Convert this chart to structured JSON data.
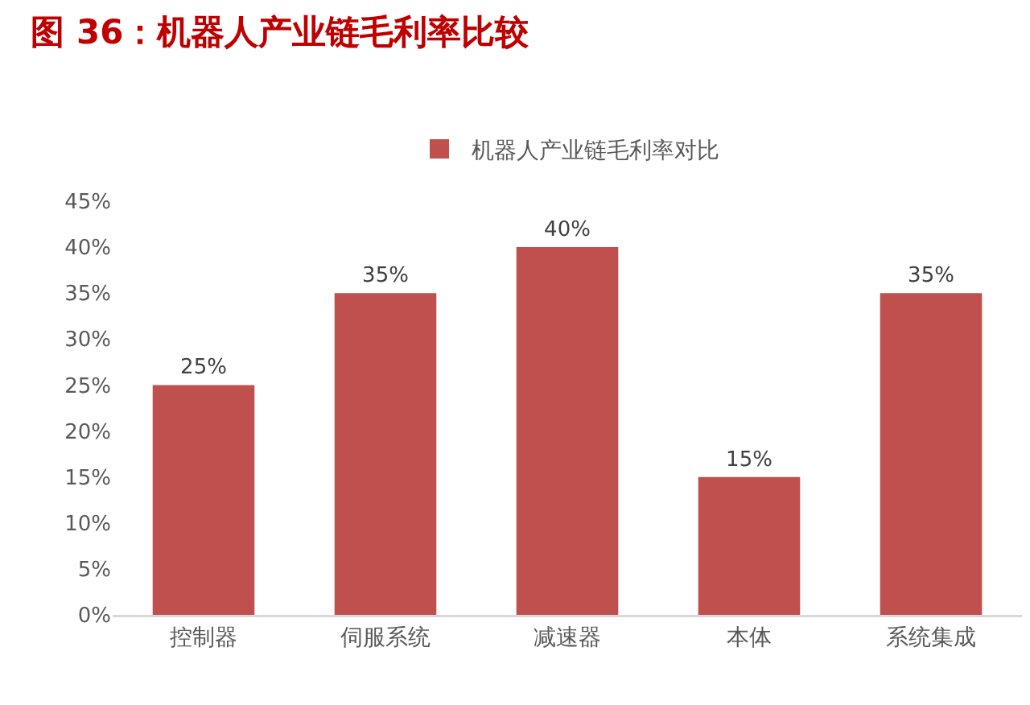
{
  "chart_data": {
    "type": "bar",
    "title": "图 36：机器人产业链毛利率比较",
    "categories": [
      "控制器",
      "伺服系统",
      "减速器",
      "本体",
      "系统集成"
    ],
    "series": [
      {
        "name": "机器人产业链毛利率对比",
        "color": "#c0504d",
        "values": [
          25,
          35,
          40,
          15,
          35
        ],
        "value_labels": [
          "25%",
          "35%",
          "40%",
          "15%",
          "35%"
        ]
      }
    ],
    "ylim": [
      0,
      45
    ],
    "yticks": [
      {
        "value": 0,
        "label": "0%"
      },
      {
        "value": 5,
        "label": "5%"
      },
      {
        "value": 10,
        "label": "10%"
      },
      {
        "value": 15,
        "label": "15%"
      },
      {
        "value": 20,
        "label": "20%"
      },
      {
        "value": 25,
        "label": "25%"
      },
      {
        "value": 30,
        "label": "30%"
      },
      {
        "value": 35,
        "label": "35%"
      },
      {
        "value": 40,
        "label": "40%"
      },
      {
        "value": 45,
        "label": "45%"
      }
    ],
    "grid": false,
    "legend": "top"
  }
}
